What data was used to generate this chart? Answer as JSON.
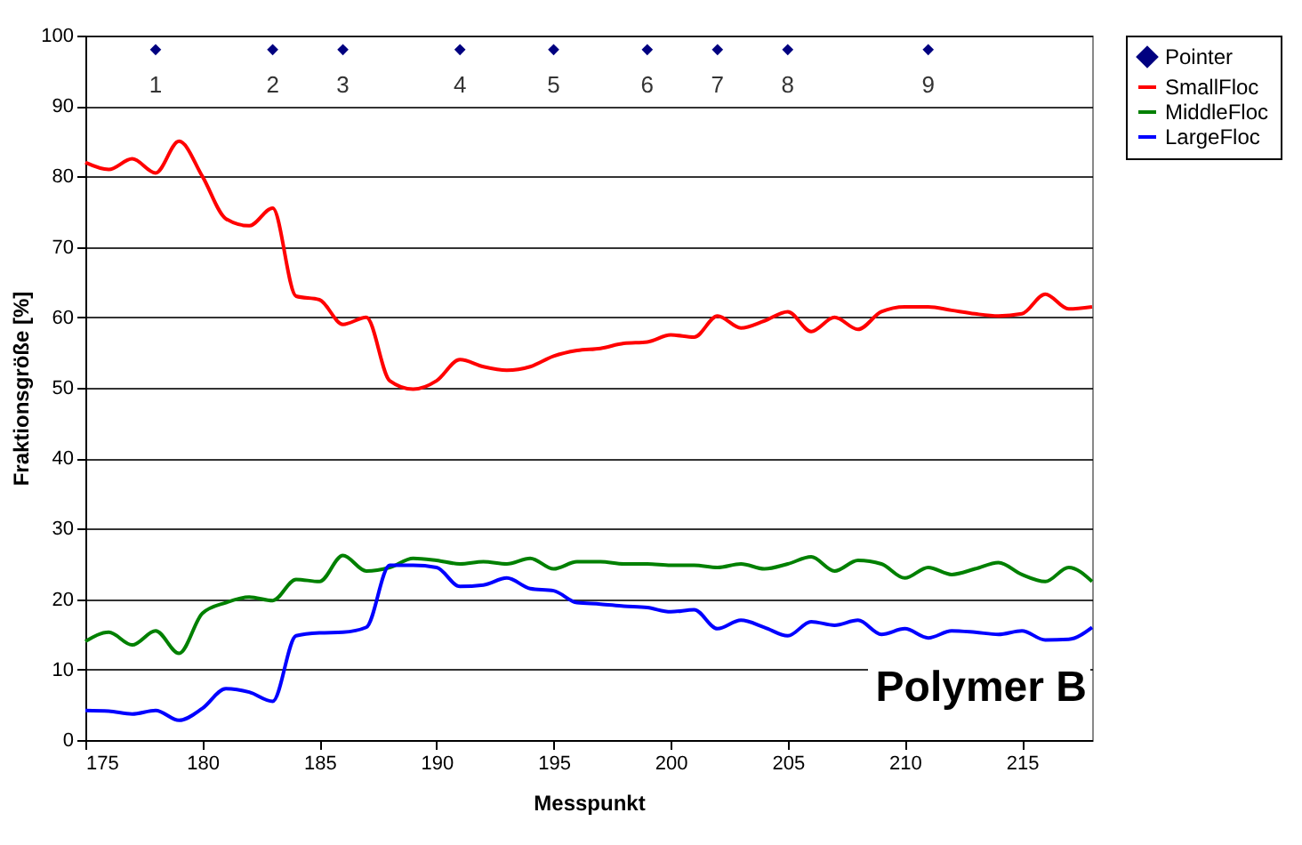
{
  "chart_data": {
    "type": "line",
    "xlabel": "Messpunkt",
    "ylabel": "Fraktionsgröße [%]",
    "x": [
      175,
      176,
      177,
      178,
      179,
      180,
      181,
      182,
      183,
      184,
      185,
      186,
      187,
      188,
      189,
      190,
      191,
      192,
      193,
      194,
      195,
      196,
      197,
      198,
      199,
      200,
      201,
      202,
      203,
      204,
      205,
      206,
      207,
      208,
      209,
      210,
      211,
      212,
      213,
      214,
      215,
      216,
      217,
      218
    ],
    "xlim": [
      175,
      218
    ],
    "xticks": [
      175,
      180,
      185,
      190,
      195,
      200,
      205,
      210,
      215
    ],
    "ylim": [
      0,
      100
    ],
    "yticks": [
      0,
      10,
      20,
      30,
      40,
      50,
      60,
      70,
      80,
      90,
      100
    ],
    "grid": "y",
    "legend": "right",
    "annotations": [
      "Polymer B",
      {
        "text": "1",
        "x": 178,
        "y": 98
      },
      {
        "text": "2",
        "x": 183,
        "y": 98
      },
      {
        "text": "3",
        "x": 186,
        "y": 98
      },
      {
        "text": "4",
        "x": 191,
        "y": 98
      },
      {
        "text": "5",
        "x": 195,
        "y": 98
      },
      {
        "text": "6",
        "x": 199,
        "y": 98
      },
      {
        "text": "7",
        "x": 202,
        "y": 98
      },
      {
        "text": "8",
        "x": 205,
        "y": 98
      },
      {
        "text": "9",
        "x": 211,
        "y": 98
      }
    ],
    "series": [
      {
        "name": "Pointer",
        "type": "scatter",
        "marker": "diamond",
        "color": "#000080",
        "x": [
          178,
          183,
          186,
          191,
          195,
          199,
          202,
          205,
          211
        ],
        "values": [
          98,
          98,
          98,
          98,
          98,
          98,
          98,
          98,
          98
        ]
      },
      {
        "name": "SmallFloc",
        "color": "#ff0000",
        "values": [
          82,
          81,
          82.5,
          80.5,
          85,
          80,
          74,
          73,
          75.5,
          63,
          62.5,
          59,
          60,
          51,
          49.8,
          51,
          54,
          53,
          52.5,
          53,
          54.5,
          55.3,
          55.6,
          56.3,
          56.5,
          57.5,
          57.2,
          60.2,
          58.5,
          59.5,
          60.8,
          58,
          60,
          58.3,
          60.8,
          61.5,
          61.5,
          61,
          60.5,
          60.2,
          60.5,
          63.3,
          61.2,
          61.5
        ]
      },
      {
        "name": "MiddleFloc",
        "color": "#008000",
        "values": [
          14,
          15.3,
          13.5,
          15.5,
          12.3,
          18,
          19.5,
          20.3,
          19.8,
          22.8,
          22.5,
          26.2,
          24,
          24.5,
          25.8,
          25.5,
          25,
          25.3,
          25,
          25.8,
          24.3,
          25.3,
          25.3,
          25,
          25,
          24.8,
          24.8,
          24.5,
          25,
          24.3,
          25,
          26,
          24,
          25.5,
          25,
          23,
          24.5,
          23.5,
          24.3,
          25.2,
          23.5,
          22.5,
          24.5,
          22.5
        ]
      },
      {
        "name": "LargeFloc",
        "color": "#0000ff",
        "values": [
          4.2,
          4.1,
          3.7,
          4.2,
          2.8,
          4.5,
          7.3,
          6.8,
          5.5,
          14.8,
          15.2,
          15.3,
          16,
          24.8,
          24.8,
          24.5,
          21.8,
          22,
          23,
          21.5,
          21.2,
          19.5,
          19.3,
          19,
          18.8,
          18.2,
          18.5,
          15.8,
          17,
          16,
          14.8,
          16.8,
          16.3,
          17,
          15,
          15.8,
          14.5,
          15.5,
          15.3,
          15,
          15.5,
          14.2,
          14.3,
          16
        ]
      }
    ]
  }
}
